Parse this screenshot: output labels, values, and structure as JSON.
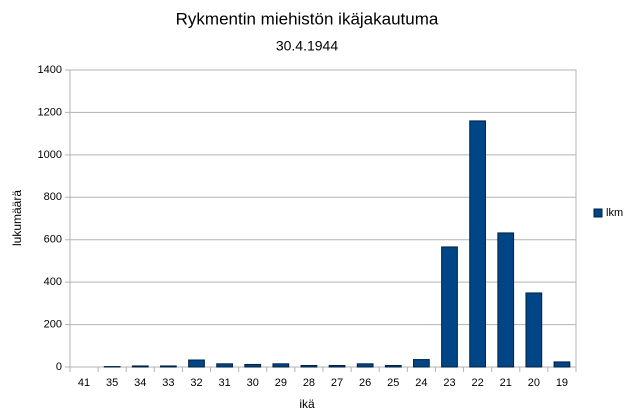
{
  "chart_data": {
    "type": "bar",
    "title": "Rykmentin miehistön ikäjakautuma",
    "subtitle": "30.4.1944",
    "x_label": "ikä",
    "y_label": "lukumäärä",
    "categories": [
      "41",
      "35",
      "34",
      "33",
      "32",
      "31",
      "30",
      "29",
      "28",
      "27",
      "26",
      "25",
      "24",
      "23",
      "22",
      "21",
      "20",
      "19"
    ],
    "series": [
      {
        "name": "lkm",
        "color": "#004586",
        "values": [
          0,
          2,
          5,
          5,
          33,
          15,
          12,
          15,
          7,
          7,
          15,
          7,
          35,
          566,
          1160,
          632,
          349,
          24
        ]
      }
    ],
    "ylim": [
      0,
      1400
    ],
    "yticks": [
      0,
      200,
      400,
      600,
      800,
      1000,
      1200,
      1400
    ],
    "grid": true,
    "legend": "right"
  }
}
